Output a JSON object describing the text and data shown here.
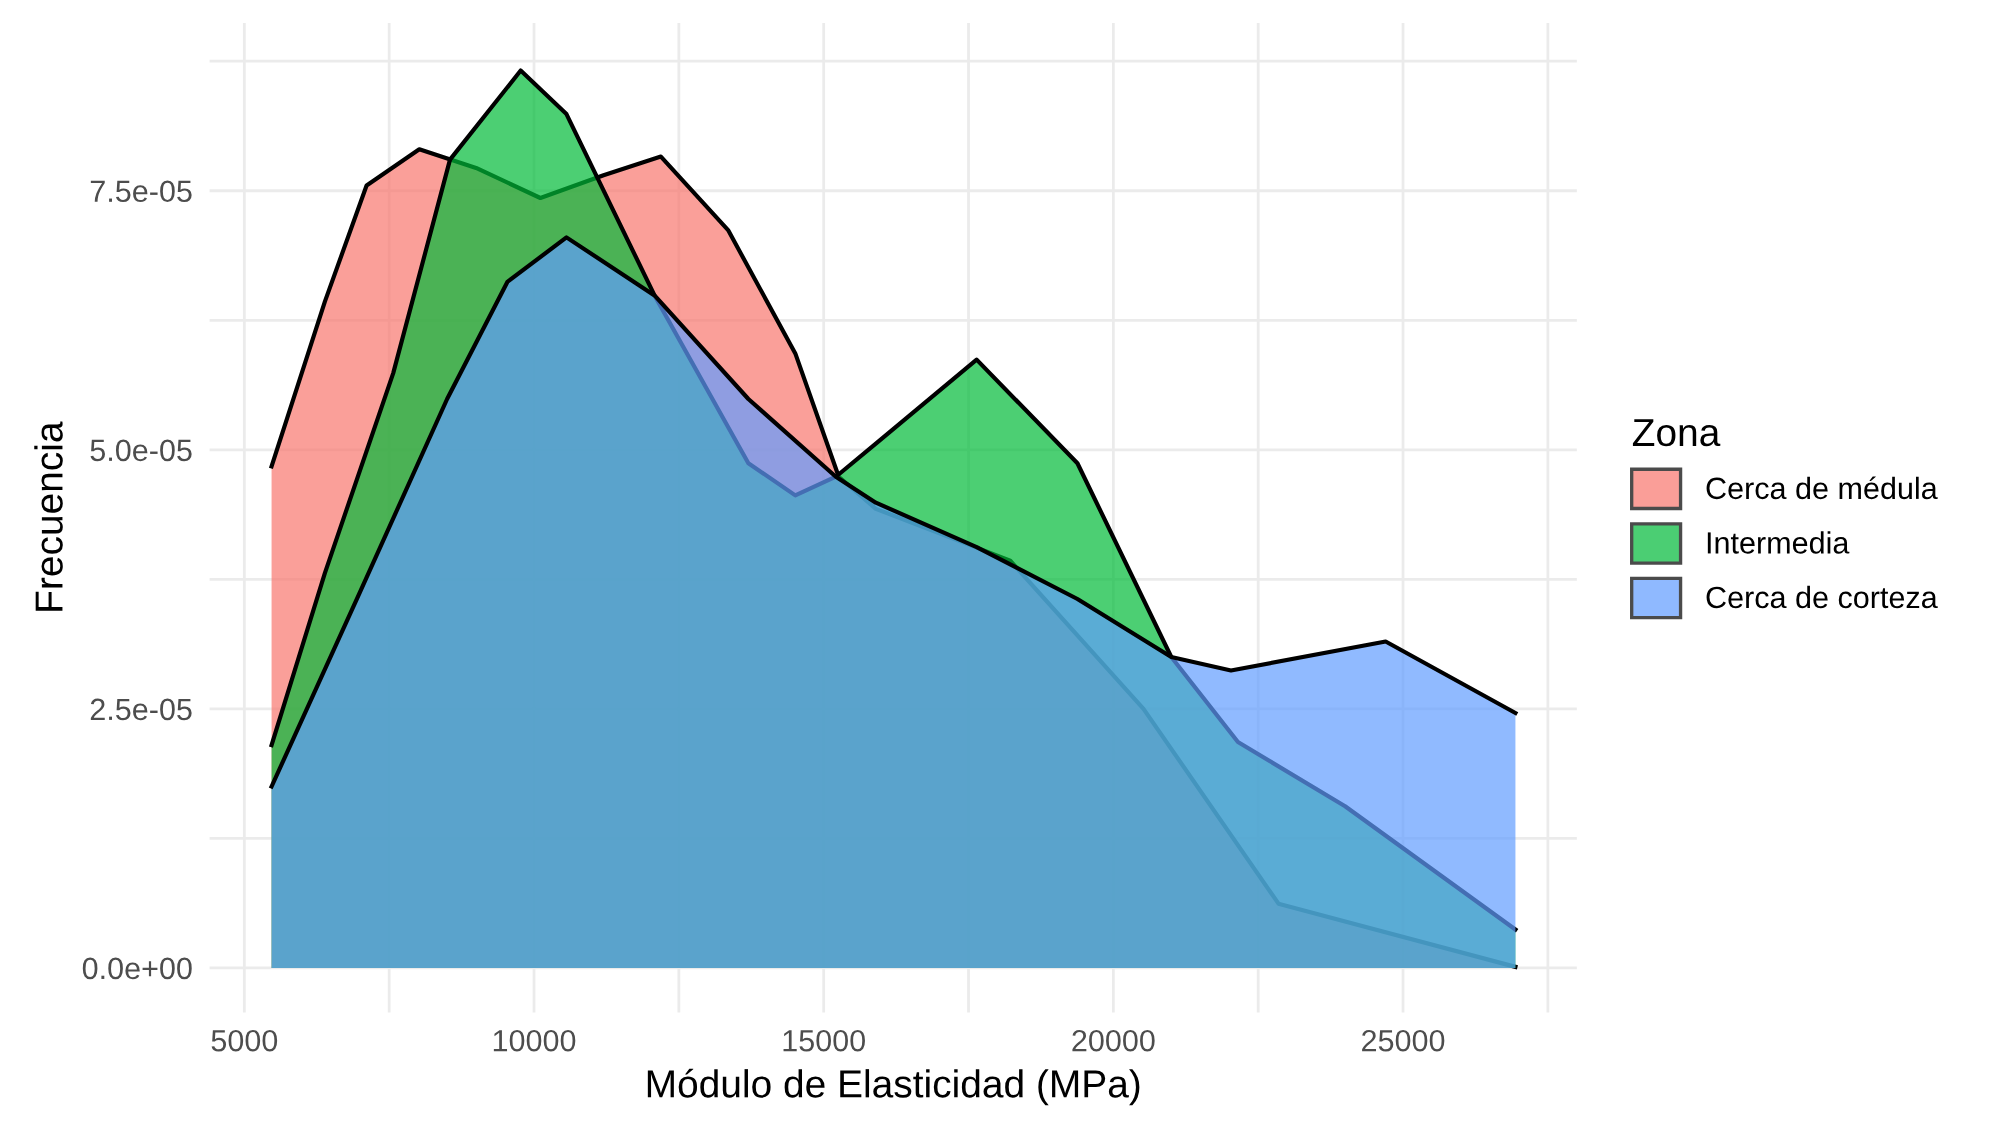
{
  "chart_data": {
    "type": "area",
    "xlabel": "Módulo de Elasticidad (MPa)",
    "ylabel": "Frecuencia",
    "legend_title": "Zona",
    "legend": "right",
    "grid": true,
    "xlim": [
      4400,
      28000
    ],
    "ylim": [
      -4.3e-06,
      9.12e-05
    ],
    "xticks": [
      5000,
      {
        "value": 7500,
        "label": null
      },
      10000,
      {
        "value": 12500,
        "label": null
      },
      15000,
      {
        "value": 17500,
        "label": null
      },
      20000,
      {
        "value": 22500,
        "label": null
      },
      25000,
      {
        "value": 27500,
        "label": null
      }
    ],
    "yticks": [
      {
        "value": 0,
        "label": "0.0e+00"
      },
      {
        "value": 1.25e-05,
        "label": null
      },
      {
        "value": 2.5e-05,
        "label": "2.5e-05"
      },
      {
        "value": 3.75e-05,
        "label": null
      },
      {
        "value": 5e-05,
        "label": "5.0e-05"
      },
      {
        "value": 6.25e-05,
        "label": null
      },
      {
        "value": 7.5e-05,
        "label": "7.5e-05"
      },
      {
        "value": 8.75e-05,
        "label": null
      }
    ],
    "series": [
      {
        "name": "Cerca de médula",
        "color": "#f8766d",
        "x": [
          5470,
          6390,
          7110,
          8020,
          9000,
          10110,
          11200,
          12190,
          13350,
          14510,
          15260,
          15900,
          18220,
          20520,
          22850,
          26940
        ],
        "values": [
          4.84e-05,
          6.43e-05,
          7.55e-05,
          7.9e-05,
          7.72e-05,
          7.43e-05,
          7.65e-05,
          7.83e-05,
          7.12e-05,
          5.93e-05,
          4.74e-05,
          4.43e-05,
          3.93e-05,
          2.5e-05,
          6.2e-06,
          1e-07
        ]
      },
      {
        "name": "Intermedia",
        "color": "#00ba38",
        "x": [
          5470,
          6390,
          7570,
          8550,
          9770,
          10560,
          12080,
          13700,
          14510,
          15210,
          15900,
          17640,
          19380,
          21000,
          22150,
          24000,
          26940
        ],
        "values": [
          2.15e-05,
          3.81e-05,
          5.74e-05,
          7.8e-05,
          8.66e-05,
          8.24e-05,
          6.49e-05,
          4.87e-05,
          4.56e-05,
          4.74e-05,
          5.06e-05,
          5.87e-05,
          4.87e-05,
          3e-05,
          2.18e-05,
          1.56e-05,
          3.7e-06
        ]
      },
      {
        "name": "Cerca de corteza",
        "color": "#619cff",
        "x": [
          5470,
          6990,
          8500,
          9540,
          10560,
          12080,
          13700,
          15210,
          15900,
          17640,
          19380,
          21000,
          22030,
          24700,
          26940
        ],
        "values": [
          1.75e-05,
          3.62e-05,
          5.49e-05,
          6.62e-05,
          7.05e-05,
          6.49e-05,
          5.49e-05,
          4.74e-05,
          4.49e-05,
          4.06e-05,
          3.56e-05,
          3e-05,
          2.87e-05,
          3.15e-05,
          2.46e-05
        ]
      }
    ]
  }
}
